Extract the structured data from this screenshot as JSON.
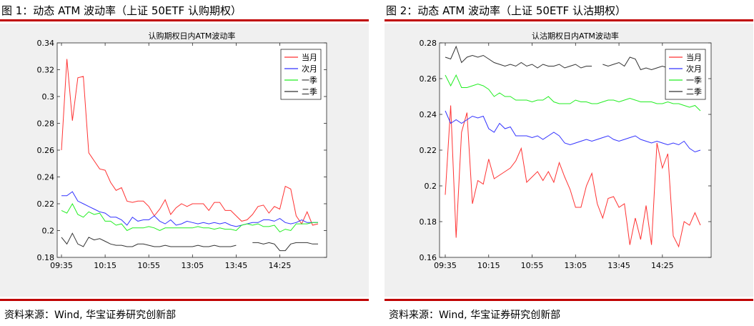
{
  "left": {
    "caption": "图 1：动态 ATM 波动率（上证 50ETF 认购期权）",
    "source": "资料来源：Wind, 华宝证券研究创新部"
  },
  "right": {
    "caption": "图 2：动态 ATM 波动率（上证 50ETF 认沽期权）",
    "source": "资料来源：Wind, 华宝证券研究创新部"
  },
  "colors": {
    "accent_rule": "#c00000",
    "figure_bg": "#f0f0f0",
    "axes_bg": "#ffffff"
  },
  "chart_data": [
    {
      "type": "line",
      "title": "认购期权日内ATM波动率",
      "xlabel": "",
      "ylabel": "",
      "x_tick_labels": [
        "09:35",
        "10:15",
        "10:55",
        "13:05",
        "13:45",
        "14:25"
      ],
      "x_tick_index": [
        0,
        8,
        16,
        24,
        32,
        40
      ],
      "n_points": 48,
      "ylim": [
        0.18,
        0.34
      ],
      "y_ticks": [
        0.18,
        0.2,
        0.22,
        0.24,
        0.26,
        0.28,
        0.3,
        0.32,
        0.34
      ],
      "y_tick_labels": [
        "0.18",
        "0.2",
        "0.22",
        "0.24",
        "0.26",
        "0.28",
        "0.3",
        "0.32",
        "0.34"
      ],
      "grid": false,
      "legend_position": "top-right",
      "series": [
        {
          "name": "当月",
          "color": "#ff3333",
          "values": [
            0.26,
            0.328,
            0.282,
            0.314,
            0.315,
            0.258,
            0.252,
            0.246,
            0.245,
            0.236,
            0.23,
            0.232,
            0.222,
            0.221,
            0.222,
            0.222,
            0.218,
            0.211,
            0.216,
            0.223,
            0.212,
            0.217,
            0.22,
            0.218,
            0.22,
            0.22,
            0.22,
            0.215,
            0.221,
            0.221,
            0.215,
            0.215,
            0.211,
            0.207,
            0.208,
            0.212,
            0.218,
            0.219,
            0.213,
            0.218,
            0.216,
            0.233,
            0.231,
            0.211,
            0.205,
            0.214,
            0.204,
            0.205
          ]
        },
        {
          "name": "次月",
          "color": "#3333ff",
          "values": [
            0.226,
            0.226,
            0.229,
            0.222,
            0.22,
            0.218,
            0.216,
            0.214,
            0.213,
            0.21,
            0.21,
            0.208,
            0.204,
            0.21,
            0.207,
            0.208,
            0.208,
            0.211,
            0.207,
            0.205,
            0.208,
            0.204,
            0.205,
            0.207,
            0.206,
            0.205,
            0.206,
            0.205,
            0.206,
            0.205,
            0.206,
            0.204,
            0.203,
            0.204,
            0.205,
            0.206,
            0.206,
            0.208,
            0.208,
            0.207,
            0.209,
            0.206,
            0.205,
            0.206,
            0.208,
            0.206,
            0.206,
            0.206
          ]
        },
        {
          "name": "一季",
          "color": "#22ee22",
          "values": [
            0.215,
            0.213,
            0.22,
            0.212,
            0.21,
            0.214,
            0.212,
            0.213,
            0.207,
            0.207,
            0.204,
            0.205,
            0.2,
            0.202,
            0.202,
            0.202,
            0.203,
            0.202,
            0.2,
            0.202,
            0.202,
            0.202,
            0.202,
            0.202,
            0.202,
            0.203,
            0.202,
            0.202,
            0.201,
            0.202,
            0.201,
            0.201,
            0.2,
            0.204,
            0.205,
            0.204,
            0.205,
            0.203,
            0.203,
            0.204,
            0.199,
            0.201,
            0.2,
            0.205,
            0.205,
            0.205,
            0.206,
            0.206
          ]
        },
        {
          "name": "二季",
          "color": "#333333",
          "values": [
            0.195,
            0.19,
            0.198,
            0.19,
            0.188,
            0.195,
            0.193,
            0.194,
            0.192,
            0.19,
            0.189,
            0.189,
            0.188,
            0.188,
            0.19,
            0.19,
            0.189,
            0.188,
            0.188,
            0.189,
            0.188,
            0.188,
            0.188,
            0.188,
            0.188,
            0.189,
            0.188,
            0.188,
            0.189,
            0.188,
            0.188,
            0.188,
            0.189,
            null,
            null,
            0.191,
            0.191,
            0.19,
            0.191,
            0.19,
            0.185,
            0.185,
            0.19,
            0.191,
            0.191,
            0.191,
            0.19,
            0.19
          ]
        }
      ]
    },
    {
      "type": "line",
      "title": "认沽期权日内ATM波动率",
      "xlabel": "",
      "ylabel": "",
      "x_tick_labels": [
        "09:35",
        "10:15",
        "10:55",
        "13:05",
        "13:45",
        "14:25"
      ],
      "x_tick_index": [
        0,
        8,
        16,
        24,
        32,
        40
      ],
      "n_points": 48,
      "ylim": [
        0.16,
        0.28
      ],
      "y_ticks": [
        0.16,
        0.18,
        0.2,
        0.22,
        0.24,
        0.26,
        0.28
      ],
      "y_tick_labels": [
        "0.16",
        "0.18",
        "0.2",
        "0.22",
        "0.24",
        "0.26",
        "0.28"
      ],
      "grid": false,
      "legend_position": "top-right",
      "series": [
        {
          "name": "当月",
          "color": "#ff3333",
          "values": [
            0.195,
            0.245,
            0.171,
            0.23,
            0.241,
            0.19,
            0.203,
            0.201,
            0.215,
            0.204,
            0.206,
            0.208,
            0.21,
            0.214,
            0.221,
            0.202,
            0.205,
            0.208,
            0.203,
            0.208,
            0.202,
            0.213,
            0.205,
            0.198,
            0.188,
            0.188,
            0.2,
            0.207,
            0.19,
            0.182,
            0.193,
            0.194,
            0.188,
            0.19,
            0.167,
            0.182,
            0.17,
            0.189,
            0.167,
            0.224,
            0.21,
            0.218,
            0.172,
            0.166,
            0.18,
            0.178,
            0.185,
            0.178
          ]
        },
        {
          "name": "次月",
          "color": "#3333ff",
          "values": [
            0.242,
            0.235,
            0.237,
            0.235,
            0.237,
            0.239,
            0.238,
            0.239,
            0.232,
            0.23,
            0.235,
            0.232,
            0.233,
            0.228,
            0.228,
            0.228,
            0.227,
            0.228,
            0.226,
            0.228,
            0.23,
            0.228,
            0.224,
            0.223,
            0.224,
            0.225,
            0.226,
            0.225,
            0.226,
            0.227,
            0.228,
            0.226,
            0.225,
            0.226,
            0.227,
            0.228,
            0.226,
            0.225,
            0.224,
            0.225,
            0.224,
            0.223,
            0.224,
            0.223,
            0.225,
            0.221,
            0.219,
            0.22
          ]
        },
        {
          "name": "一季",
          "color": "#22ee22",
          "values": [
            0.262,
            0.256,
            0.262,
            0.255,
            0.255,
            0.256,
            0.257,
            0.256,
            0.254,
            0.25,
            0.252,
            0.25,
            0.25,
            0.248,
            0.248,
            0.248,
            0.247,
            0.248,
            0.248,
            0.25,
            0.247,
            0.246,
            0.246,
            0.246,
            0.248,
            0.247,
            0.247,
            0.246,
            0.246,
            0.247,
            0.248,
            0.248,
            0.247,
            0.248,
            0.249,
            0.248,
            0.247,
            0.247,
            0.247,
            0.246,
            0.246,
            0.247,
            0.246,
            0.246,
            0.245,
            0.244,
            0.245,
            0.242
          ]
        },
        {
          "name": "二季",
          "color": "#333333",
          "values": [
            0.272,
            0.271,
            0.278,
            0.269,
            0.272,
            0.273,
            0.272,
            0.273,
            0.271,
            0.269,
            0.268,
            0.267,
            0.268,
            0.267,
            0.269,
            0.267,
            0.268,
            0.266,
            0.268,
            0.267,
            0.267,
            0.268,
            0.266,
            0.267,
            0.268,
            0.266,
            0.267,
            0.267,
            null,
            0.268,
            0.267,
            0.268,
            0.269,
            0.267,
            0.272,
            0.271,
            0.265,
            0.266,
            0.265,
            0.266,
            0.267,
            0.266,
            0.265,
            0.262,
            0.266,
            0.265,
            0.266,
            0.267
          ]
        }
      ]
    }
  ]
}
